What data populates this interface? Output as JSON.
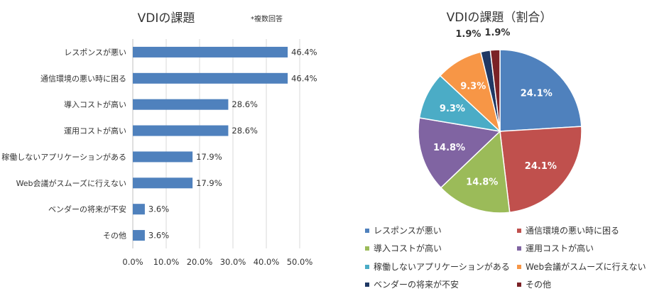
{
  "bar_chart": {
    "title": "VDIの課題",
    "note": "*複数回答",
    "tick_labels": [
      "0.0%",
      "10.0%",
      "20.0%",
      "30.0%",
      "40.0%",
      "50.0%"
    ],
    "value_labels": [
      "46.4%",
      "46.4%",
      "28.6%",
      "28.6%",
      "17.9%",
      "17.9%",
      "3.6%",
      "3.6%"
    ]
  },
  "pie_chart": {
    "title": "VDIの課題（割合）",
    "slice_labels": [
      "24.1%",
      "24.1%",
      "14.8%",
      "14.8%",
      "9.3%",
      "9.3%",
      "1.9%",
      "1.9%"
    ]
  },
  "chart_data": [
    {
      "type": "bar",
      "orientation": "horizontal",
      "title": "VDIの課題",
      "annotation": "*複数回答",
      "categories": [
        "レスポンスが悪い",
        "通信環境の悪い時に困る",
        "導入コストが高い",
        "運用コストが高い",
        "稼働しないアプリケーションがある",
        "Web会議がスムーズに行えない",
        "ベンダーの将来が不安",
        "その他"
      ],
      "values": [
        46.4,
        46.4,
        28.6,
        28.6,
        17.9,
        17.9,
        3.6,
        3.6
      ],
      "unit": "%",
      "xlim": [
        0,
        50
      ],
      "xticks": [
        0,
        10,
        20,
        30,
        40,
        50
      ],
      "grid": true,
      "color": "#4f81bd"
    },
    {
      "type": "pie",
      "title": "VDIの課題（割合）",
      "categories": [
        "レスポンスが悪い",
        "通信環境の悪い時に困る",
        "導入コストが高い",
        "運用コストが高い",
        "稼働しないアプリケーションがある",
        "Web会議がスムーズに行えない",
        "ベンダーの将来が不安",
        "その他"
      ],
      "values": [
        24.1,
        24.1,
        14.8,
        14.8,
        9.3,
        9.3,
        1.9,
        1.9
      ],
      "unit": "%",
      "colors": [
        "#4f81bd",
        "#c0504d",
        "#9bbb59",
        "#8064a2",
        "#4bacc6",
        "#f79646",
        "#1f3864",
        "#7b2226"
      ],
      "legend_position": "bottom"
    }
  ]
}
